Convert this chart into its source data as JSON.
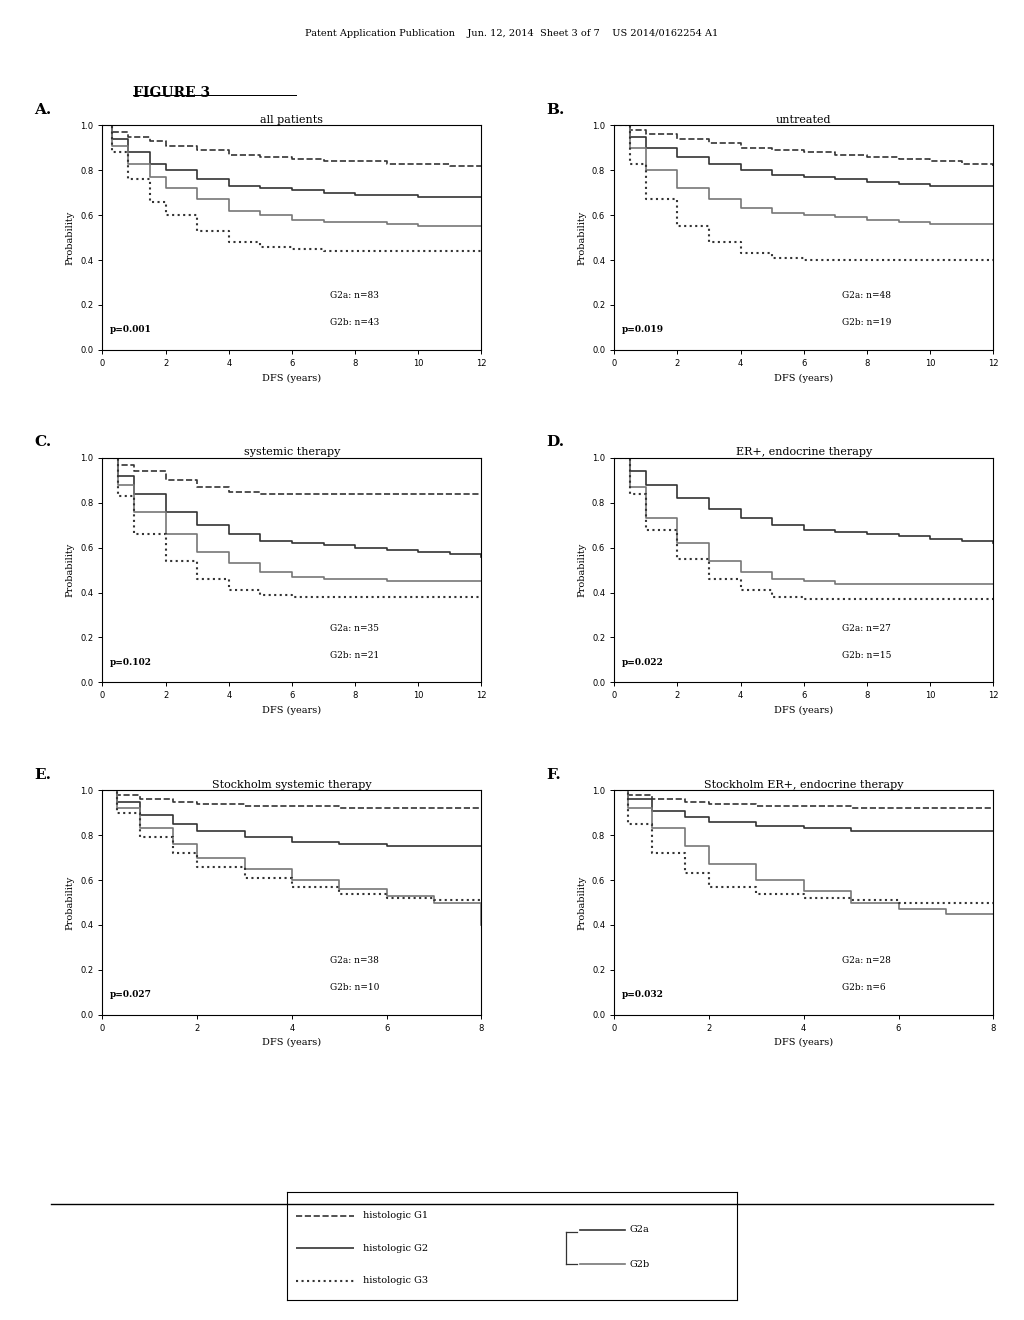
{
  "figure_title": "FIGURE 3",
  "header_text": "Patent Application Publication    Jun. 12, 2014  Sheet 3 of 7    US 2014/0162254 A1",
  "panels": [
    {
      "label": "A.",
      "title": "all patients",
      "p_value": "p=0.001",
      "g2a_n": "G2a: n=83",
      "g2b_n": "G2b: n=43",
      "xlim": [
        0,
        12
      ],
      "xticks": [
        0,
        2,
        4,
        6,
        8,
        10,
        12
      ],
      "ylim": [
        0.0,
        1.0
      ],
      "yticks": [
        0.0,
        0.2,
        0.4,
        0.6,
        0.8,
        1.0
      ],
      "curves": {
        "G1": {
          "x": [
            0,
            0.3,
            0.8,
            1.5,
            2,
            3,
            4,
            5,
            6,
            7,
            8,
            9,
            10,
            11,
            12
          ],
          "y": [
            1.0,
            0.97,
            0.95,
            0.93,
            0.91,
            0.89,
            0.87,
            0.86,
            0.85,
            0.84,
            0.84,
            0.83,
            0.83,
            0.82,
            0.82
          ]
        },
        "G2a": {
          "x": [
            0,
            0.3,
            0.8,
            1.5,
            2,
            3,
            4,
            5,
            6,
            7,
            8,
            9,
            10,
            11,
            12
          ],
          "y": [
            1.0,
            0.94,
            0.88,
            0.83,
            0.8,
            0.76,
            0.73,
            0.72,
            0.71,
            0.7,
            0.69,
            0.69,
            0.68,
            0.68,
            0.68
          ]
        },
        "G2b": {
          "x": [
            0,
            0.3,
            0.8,
            1.5,
            2,
            3,
            4,
            5,
            6,
            7,
            8,
            9,
            10,
            11,
            12
          ],
          "y": [
            1.0,
            0.91,
            0.83,
            0.77,
            0.72,
            0.67,
            0.62,
            0.6,
            0.58,
            0.57,
            0.57,
            0.56,
            0.55,
            0.55,
            0.55
          ]
        },
        "G3": {
          "x": [
            0,
            0.3,
            0.8,
            1.5,
            2,
            3,
            4,
            5,
            6,
            7,
            8,
            9,
            10,
            11,
            12
          ],
          "y": [
            1.0,
            0.88,
            0.76,
            0.66,
            0.6,
            0.53,
            0.48,
            0.46,
            0.45,
            0.44,
            0.44,
            0.44,
            0.44,
            0.44,
            0.44
          ]
        }
      }
    },
    {
      "label": "B.",
      "title": "untreated",
      "p_value": "p=0.019",
      "g2a_n": "G2a: n=48",
      "g2b_n": "G2b: n=19",
      "xlim": [
        0,
        12
      ],
      "xticks": [
        0,
        2,
        4,
        6,
        8,
        10,
        12
      ],
      "ylim": [
        0.0,
        1.0
      ],
      "yticks": [
        0.0,
        0.2,
        0.4,
        0.6,
        0.8,
        1.0
      ],
      "curves": {
        "G1": {
          "x": [
            0,
            0.5,
            1,
            2,
            3,
            4,
            5,
            6,
            7,
            8,
            9,
            10,
            11,
            12
          ],
          "y": [
            1.0,
            0.98,
            0.96,
            0.94,
            0.92,
            0.9,
            0.89,
            0.88,
            0.87,
            0.86,
            0.85,
            0.84,
            0.83,
            0.82
          ]
        },
        "G2a": {
          "x": [
            0,
            0.5,
            1,
            2,
            3,
            4,
            5,
            6,
            7,
            8,
            9,
            10,
            11,
            12
          ],
          "y": [
            1.0,
            0.95,
            0.9,
            0.86,
            0.83,
            0.8,
            0.78,
            0.77,
            0.76,
            0.75,
            0.74,
            0.73,
            0.73,
            0.73
          ]
        },
        "G2b": {
          "x": [
            0,
            0.5,
            1,
            2,
            3,
            4,
            5,
            6,
            7,
            8,
            9,
            10,
            11,
            12
          ],
          "y": [
            1.0,
            0.9,
            0.8,
            0.72,
            0.67,
            0.63,
            0.61,
            0.6,
            0.59,
            0.58,
            0.57,
            0.56,
            0.56,
            0.56
          ]
        },
        "G3": {
          "x": [
            0,
            0.5,
            1,
            2,
            3,
            4,
            5,
            6,
            7,
            8,
            9,
            10,
            11,
            12
          ],
          "y": [
            1.0,
            0.83,
            0.67,
            0.55,
            0.48,
            0.43,
            0.41,
            0.4,
            0.4,
            0.4,
            0.4,
            0.4,
            0.4,
            0.4
          ]
        }
      }
    },
    {
      "label": "C.",
      "title": "systemic therapy",
      "p_value": "p=0.102",
      "g2a_n": "G2a: n=35",
      "g2b_n": "G2b: n=21",
      "xlim": [
        0,
        12
      ],
      "xticks": [
        0,
        2,
        4,
        6,
        8,
        10,
        12
      ],
      "ylim": [
        0.0,
        1.0
      ],
      "yticks": [
        0.0,
        0.2,
        0.4,
        0.6,
        0.8,
        1.0
      ],
      "curves": {
        "G1": {
          "x": [
            0,
            0.5,
            1,
            2,
            3,
            4,
            5,
            6,
            7,
            8,
            9,
            10,
            11,
            12
          ],
          "y": [
            1.0,
            0.97,
            0.94,
            0.9,
            0.87,
            0.85,
            0.84,
            0.84,
            0.84,
            0.84,
            0.84,
            0.84,
            0.84,
            0.84
          ]
        },
        "G2a": {
          "x": [
            0,
            0.5,
            1,
            2,
            3,
            4,
            5,
            6,
            7,
            8,
            9,
            10,
            11,
            12
          ],
          "y": [
            1.0,
            0.92,
            0.84,
            0.76,
            0.7,
            0.66,
            0.63,
            0.62,
            0.61,
            0.6,
            0.59,
            0.58,
            0.57,
            0.56
          ]
        },
        "G2b": {
          "x": [
            0,
            0.5,
            1,
            2,
            3,
            4,
            5,
            6,
            7,
            8,
            9,
            10,
            11,
            12
          ],
          "y": [
            1.0,
            0.88,
            0.76,
            0.66,
            0.58,
            0.53,
            0.49,
            0.47,
            0.46,
            0.46,
            0.45,
            0.45,
            0.45,
            0.45
          ]
        },
        "G3": {
          "x": [
            0,
            0.5,
            1,
            2,
            3,
            4,
            5,
            6,
            7,
            8,
            9,
            10,
            11,
            12
          ],
          "y": [
            1.0,
            0.83,
            0.66,
            0.54,
            0.46,
            0.41,
            0.39,
            0.38,
            0.38,
            0.38,
            0.38,
            0.38,
            0.38,
            0.38
          ]
        }
      }
    },
    {
      "label": "D.",
      "title": "ER+, endocrine therapy",
      "p_value": "p=0.022",
      "g2a_n": "G2a: n=27",
      "g2b_n": "G2b: n=15",
      "xlim": [
        0,
        12
      ],
      "xticks": [
        0,
        2,
        4,
        6,
        8,
        10,
        12
      ],
      "ylim": [
        0.0,
        1.0
      ],
      "yticks": [
        0.0,
        0.2,
        0.4,
        0.6,
        0.8,
        1.0
      ],
      "curves": {
        "G1": {
          "x": [
            0,
            0.5,
            1,
            2,
            3,
            4,
            5,
            6,
            7,
            8,
            9,
            10,
            11,
            12
          ],
          "y": [
            1.0,
            1.0,
            1.0,
            1.0,
            1.0,
            1.0,
            1.0,
            1.0,
            1.0,
            1.0,
            1.0,
            1.0,
            1.0,
            1.0
          ]
        },
        "G2a": {
          "x": [
            0,
            0.5,
            1,
            2,
            3,
            4,
            5,
            6,
            7,
            8,
            9,
            10,
            11,
            12
          ],
          "y": [
            1.0,
            0.94,
            0.88,
            0.82,
            0.77,
            0.73,
            0.7,
            0.68,
            0.67,
            0.66,
            0.65,
            0.64,
            0.63,
            0.62
          ]
        },
        "G2b": {
          "x": [
            0,
            0.5,
            1,
            2,
            3,
            4,
            5,
            6,
            7,
            8,
            9,
            10,
            11,
            12
          ],
          "y": [
            1.0,
            0.87,
            0.73,
            0.62,
            0.54,
            0.49,
            0.46,
            0.45,
            0.44,
            0.44,
            0.44,
            0.44,
            0.44,
            0.44
          ]
        },
        "G3": {
          "x": [
            0,
            0.5,
            1,
            2,
            3,
            4,
            5,
            6,
            7,
            8,
            9,
            10,
            11,
            12
          ],
          "y": [
            1.0,
            0.84,
            0.68,
            0.55,
            0.46,
            0.41,
            0.38,
            0.37,
            0.37,
            0.37,
            0.37,
            0.37,
            0.37,
            0.37
          ]
        }
      }
    },
    {
      "label": "E.",
      "title": "Stockholm systemic therapy",
      "p_value": "p=0.027",
      "g2a_n": "G2a: n=38",
      "g2b_n": "G2b: n=10",
      "xlim": [
        0,
        8
      ],
      "xticks": [
        0,
        2,
        4,
        6,
        8
      ],
      "ylim": [
        0.0,
        1.0
      ],
      "yticks": [
        0.0,
        0.2,
        0.4,
        0.6,
        0.8,
        1.0
      ],
      "curves": {
        "G1": {
          "x": [
            0,
            0.3,
            0.8,
            1.5,
            2,
            3,
            4,
            5,
            6,
            7,
            8
          ],
          "y": [
            1.0,
            0.98,
            0.96,
            0.95,
            0.94,
            0.93,
            0.93,
            0.92,
            0.92,
            0.92,
            0.92
          ]
        },
        "G2a": {
          "x": [
            0,
            0.3,
            0.8,
            1.5,
            2,
            3,
            4,
            5,
            6,
            7,
            8
          ],
          "y": [
            1.0,
            0.95,
            0.89,
            0.85,
            0.82,
            0.79,
            0.77,
            0.76,
            0.75,
            0.75,
            0.75
          ]
        },
        "G2b": {
          "x": [
            0,
            0.3,
            0.8,
            1.5,
            2,
            3,
            4,
            5,
            6,
            7,
            8
          ],
          "y": [
            1.0,
            0.92,
            0.83,
            0.76,
            0.7,
            0.65,
            0.6,
            0.56,
            0.53,
            0.5,
            0.4
          ]
        },
        "G3": {
          "x": [
            0,
            0.3,
            0.8,
            1.5,
            2,
            3,
            4,
            5,
            6,
            7,
            8
          ],
          "y": [
            1.0,
            0.9,
            0.79,
            0.72,
            0.66,
            0.61,
            0.57,
            0.54,
            0.52,
            0.51,
            0.51
          ]
        }
      }
    },
    {
      "label": "F.",
      "title": "Stockholm ER+, endocrine therapy",
      "p_value": "p=0.032",
      "g2a_n": "G2a: n=28",
      "g2b_n": "G2b: n=6",
      "xlim": [
        0,
        8
      ],
      "xticks": [
        0,
        2,
        4,
        6,
        8
      ],
      "ylim": [
        0.0,
        1.0
      ],
      "yticks": [
        0.0,
        0.2,
        0.4,
        0.6,
        0.8,
        1.0
      ],
      "curves": {
        "G1": {
          "x": [
            0,
            0.3,
            0.8,
            1.5,
            2,
            3,
            4,
            5,
            6,
            7,
            8
          ],
          "y": [
            1.0,
            0.98,
            0.96,
            0.95,
            0.94,
            0.93,
            0.93,
            0.92,
            0.92,
            0.92,
            0.92
          ]
        },
        "G2a": {
          "x": [
            0,
            0.3,
            0.8,
            1.5,
            2,
            3,
            4,
            5,
            6,
            7,
            8
          ],
          "y": [
            1.0,
            0.96,
            0.91,
            0.88,
            0.86,
            0.84,
            0.83,
            0.82,
            0.82,
            0.82,
            0.82
          ]
        },
        "G2b": {
          "x": [
            0,
            0.3,
            0.8,
            1.5,
            2,
            3,
            4,
            5,
            6,
            7,
            8
          ],
          "y": [
            1.0,
            0.92,
            0.83,
            0.75,
            0.67,
            0.6,
            0.55,
            0.5,
            0.47,
            0.45,
            0.45
          ]
        },
        "G3": {
          "x": [
            0,
            0.3,
            0.8,
            1.5,
            2,
            3,
            4,
            5,
            6,
            7,
            8
          ],
          "y": [
            1.0,
            0.85,
            0.72,
            0.63,
            0.57,
            0.54,
            0.52,
            0.51,
            0.5,
            0.5,
            0.5
          ]
        }
      }
    }
  ],
  "line_styles": {
    "G1": {
      "linestyle": "--",
      "color": "#333333",
      "linewidth": 1.2
    },
    "G2a": {
      "linestyle": "-",
      "color": "#333333",
      "linewidth": 1.2
    },
    "G2b": {
      "linestyle": "-",
      "color": "#777777",
      "linewidth": 1.2
    },
    "G3": {
      "linestyle": ":",
      "color": "#333333",
      "linewidth": 1.5
    }
  },
  "xlabel": "DFS (years)",
  "ylabel": "Probability",
  "background_color": "#ffffff"
}
